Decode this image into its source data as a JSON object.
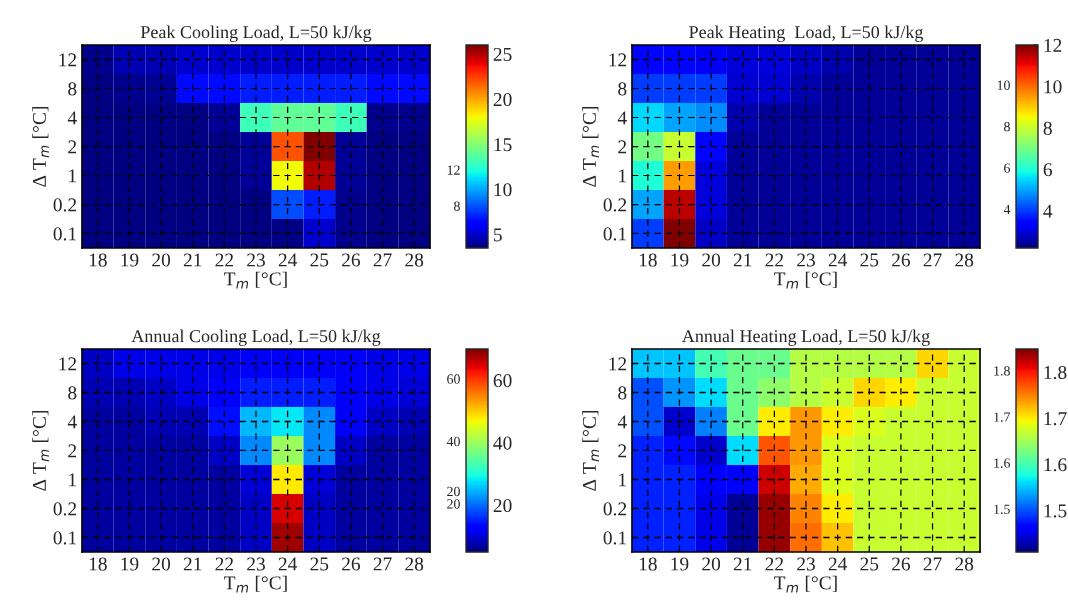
{
  "chart_data": [
    {
      "type": "heatmap",
      "title": "Peak Cooling Load, L=50 kJ/kg",
      "xlabel": "T$_{m}$ [°C]",
      "ylabel": "Δ T$_{m}$ [°C]",
      "grid": true,
      "categories": [
        "18",
        "19",
        "20",
        "21",
        "22",
        "23",
        "24",
        "25",
        "26",
        "27",
        "28"
      ],
      "y_categories": [
        "12",
        "8",
        "4",
        "2",
        "1",
        "0.2",
        "0.1"
      ],
      "cells": [
        [
          3.8,
          4.5,
          4.5,
          5,
          5,
          5,
          5,
          5,
          5,
          5,
          5
        ],
        [
          3.5,
          3.8,
          3.9,
          6.5,
          6.5,
          7,
          7,
          7,
          7,
          6.5,
          6.5
        ],
        [
          3.5,
          3.5,
          3.5,
          3.5,
          4,
          13,
          14,
          14,
          13,
          3.8,
          3.8
        ],
        [
          3.5,
          3.5,
          3.5,
          3.5,
          3.5,
          4,
          22,
          26,
          4,
          3.5,
          3.5
        ],
        [
          3.5,
          3.5,
          3.5,
          3.5,
          3.5,
          4,
          18,
          25,
          4,
          3.5,
          3.5
        ],
        [
          3.5,
          3.5,
          3.5,
          3.5,
          3.5,
          3.5,
          8,
          7,
          3.8,
          3.5,
          3.5
        ],
        [
          3.5,
          3.5,
          3.5,
          3.5,
          3.5,
          3.5,
          3.6,
          5,
          3.8,
          3.5,
          3.5
        ]
      ],
      "clim": [
        3.5,
        26
      ],
      "cticks": [
        5,
        10,
        15,
        20,
        25
      ],
      "annotations": [
        "8",
        "12"
      ]
    },
    {
      "type": "heatmap",
      "title": "Peak Heating  Load, L=50 kJ/kg",
      "xlabel": "T$_{m}$ [°C]",
      "ylabel": "Δ T$_{m}$ [°C]",
      "grid": true,
      "categories": [
        "18",
        "19",
        "20",
        "21",
        "22",
        "23",
        "24",
        "25",
        "26",
        "27",
        "28"
      ],
      "y_categories": [
        "12",
        "8",
        "4",
        "2",
        "1",
        "0.2",
        "0.1"
      ],
      "cells": [
        [
          3.5,
          3.5,
          3.2,
          3,
          3,
          2.8,
          2.6,
          2.4,
          2.4,
          2.4,
          2.4
        ],
        [
          4,
          4,
          4,
          2.9,
          2.9,
          2.6,
          2.4,
          2.4,
          2.4,
          2.4,
          2.4
        ],
        [
          5.5,
          5,
          4.8,
          2.6,
          2.4,
          2.4,
          2.4,
          2.4,
          2.4,
          2.4,
          2.4
        ],
        [
          7,
          8,
          3.5,
          2.4,
          2.4,
          2.4,
          2.4,
          2.4,
          2.4,
          2.4,
          2.4
        ],
        [
          6,
          9.5,
          3,
          2.4,
          2.4,
          2.4,
          2.4,
          2.4,
          2.4,
          2.4,
          2.4
        ],
        [
          5,
          11.5,
          3,
          2.4,
          2.4,
          2.4,
          2.4,
          2.4,
          2.4,
          2.4,
          2.4
        ],
        [
          4,
          12,
          2.8,
          2.4,
          2.4,
          2.4,
          2.4,
          2.4,
          2.4,
          2.4,
          2.4
        ]
      ],
      "clim": [
        2.2,
        12
      ],
      "cticks": [
        4,
        6,
        8,
        10,
        12
      ],
      "annotations": [
        "4",
        "6",
        "8",
        "10"
      ]
    },
    {
      "type": "heatmap",
      "title": "Annual Cooling Load, L=50 kJ/kg",
      "xlabel": "T$_{m}$ [°C]",
      "ylabel": "Δ T$_{m}$ [°C]",
      "grid": true,
      "categories": [
        "18",
        "19",
        "20",
        "21",
        "22",
        "23",
        "24",
        "25",
        "26",
        "27",
        "28"
      ],
      "y_categories": [
        "12",
        "8",
        "4",
        "2",
        "1",
        "0.2",
        "0.1"
      ],
      "cells": [
        [
          9,
          11,
          11,
          11,
          11,
          12,
          12,
          12,
          12,
          11,
          11
        ],
        [
          8,
          8,
          9,
          11,
          12,
          15,
          15,
          15,
          12,
          11,
          10
        ],
        [
          7,
          7,
          8,
          8,
          14,
          25,
          28,
          22,
          12,
          9,
          8
        ],
        [
          7,
          7,
          7,
          7,
          9,
          22,
          40,
          22,
          9,
          7,
          7
        ],
        [
          7,
          7,
          7,
          7,
          7,
          10,
          48,
          10,
          7,
          7,
          7
        ],
        [
          7,
          7,
          7,
          7,
          7,
          9,
          65,
          9,
          7,
          7,
          7
        ],
        [
          7,
          7,
          7,
          7,
          7,
          9,
          68,
          9,
          7,
          7,
          7
        ]
      ],
      "clim": [
        5,
        70
      ],
      "cticks": [
        20,
        40,
        60
      ],
      "annotations": [
        "20",
        "40",
        "60",
        "20"
      ]
    },
    {
      "type": "heatmap",
      "title": "Annual Heating Load, L=50 kJ/kg",
      "xlabel": "T$_{m}$ [°C]",
      "ylabel": "Δ T$_{m}$ [°C]",
      "grid": true,
      "categories": [
        "18",
        "19",
        "20",
        "21",
        "22",
        "23",
        "24",
        "25",
        "26",
        "27",
        "28"
      ],
      "y_categories": [
        "12",
        "8",
        "4",
        "2",
        "1",
        "0.2",
        "0.1"
      ],
      "cells": [
        [
          1.55,
          1.55,
          1.6,
          1.62,
          1.62,
          1.66,
          1.66,
          1.66,
          1.66,
          1.71,
          1.67
        ],
        [
          1.5,
          1.53,
          1.56,
          1.62,
          1.64,
          1.66,
          1.67,
          1.71,
          1.7,
          1.67,
          1.67
        ],
        [
          1.5,
          1.44,
          1.52,
          1.62,
          1.7,
          1.74,
          1.7,
          1.68,
          1.67,
          1.67,
          1.67
        ],
        [
          1.48,
          1.47,
          1.44,
          1.56,
          1.77,
          1.74,
          1.68,
          1.67,
          1.67,
          1.67,
          1.67
        ],
        [
          1.48,
          1.48,
          1.46,
          1.46,
          1.82,
          1.73,
          1.68,
          1.67,
          1.67,
          1.67,
          1.67
        ],
        [
          1.48,
          1.48,
          1.45,
          1.42,
          1.84,
          1.75,
          1.7,
          1.67,
          1.67,
          1.67,
          1.67
        ],
        [
          1.48,
          1.48,
          1.45,
          1.42,
          1.84,
          1.76,
          1.72,
          1.67,
          1.67,
          1.67,
          1.67
        ]
      ],
      "clim": [
        1.41,
        1.85
      ],
      "cticks": [
        1.5,
        1.6,
        1.7,
        1.8
      ],
      "annotations": [
        "1.6",
        "1.5",
        "1.7",
        "1.8"
      ]
    }
  ]
}
